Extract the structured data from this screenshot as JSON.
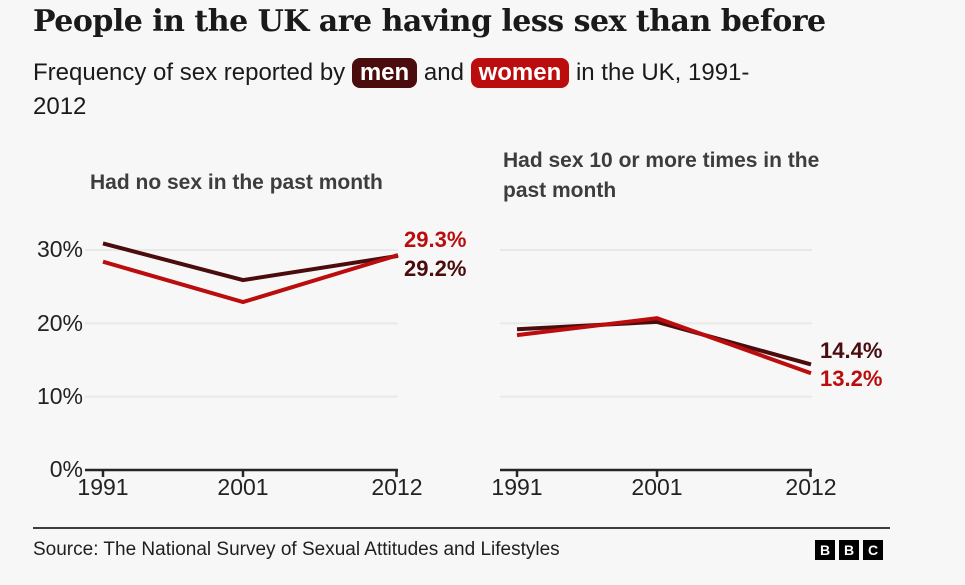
{
  "header": {
    "title": "People in the UK are having less sex than before",
    "subtitle_prefix": "Frequency of sex reported by ",
    "badge_men": "men",
    "connector": " and ",
    "badge_women": "women",
    "subtitle_suffix": " in the UK, 1991-",
    "subtitle_line2": "2012"
  },
  "colors": {
    "men": "#4a0c0d",
    "women": "#bb0d0d",
    "axis": "#262626",
    "grid": "#e9e9e9",
    "background": "#f7f7f7"
  },
  "chart_data": [
    {
      "type": "line",
      "title": "Had no sex in the past month",
      "x": [
        1991,
        2001,
        2012
      ],
      "x_tick_labels": [
        "1991",
        "2001",
        "2012"
      ],
      "y_tick_labels": [
        "30%",
        "20%",
        "10%",
        "0%"
      ],
      "y_tick_values": [
        30,
        20,
        10,
        0
      ],
      "grid_values": [
        30,
        20,
        10
      ],
      "ylim": [
        0,
        33
      ],
      "ylabel": "",
      "xlabel": "",
      "legend": "inline-badges",
      "series": [
        {
          "name": "men",
          "color": "#4a0c0d",
          "values": [
            30.9,
            25.9,
            29.2
          ],
          "end_label": "29.2%"
        },
        {
          "name": "women",
          "color": "#bb0d0d",
          "values": [
            28.4,
            22.9,
            29.3
          ],
          "end_label": "29.3%"
        }
      ]
    },
    {
      "type": "line",
      "title": "Had sex 10 or more times in the past month",
      "x": [
        1991,
        2001,
        2012
      ],
      "x_tick_labels": [
        "1991",
        "2001",
        "2012"
      ],
      "y_tick_labels": [],
      "y_tick_values": [],
      "grid_values": [
        30,
        20,
        10
      ],
      "ylim": [
        0,
        33
      ],
      "ylabel": "",
      "xlabel": "",
      "legend": "inline-badges",
      "series": [
        {
          "name": "men",
          "color": "#4a0c0d",
          "values": [
            19.2,
            20.2,
            14.4
          ],
          "end_label": "14.4%"
        },
        {
          "name": "women",
          "color": "#bb0d0d",
          "values": [
            18.4,
            20.7,
            13.2
          ],
          "end_label": "13.2%"
        }
      ]
    }
  ],
  "footer": {
    "source": "Source: The National Survey of Sexual Attitudes and Lifestyles",
    "logo_letters": [
      "B",
      "B",
      "C"
    ]
  }
}
